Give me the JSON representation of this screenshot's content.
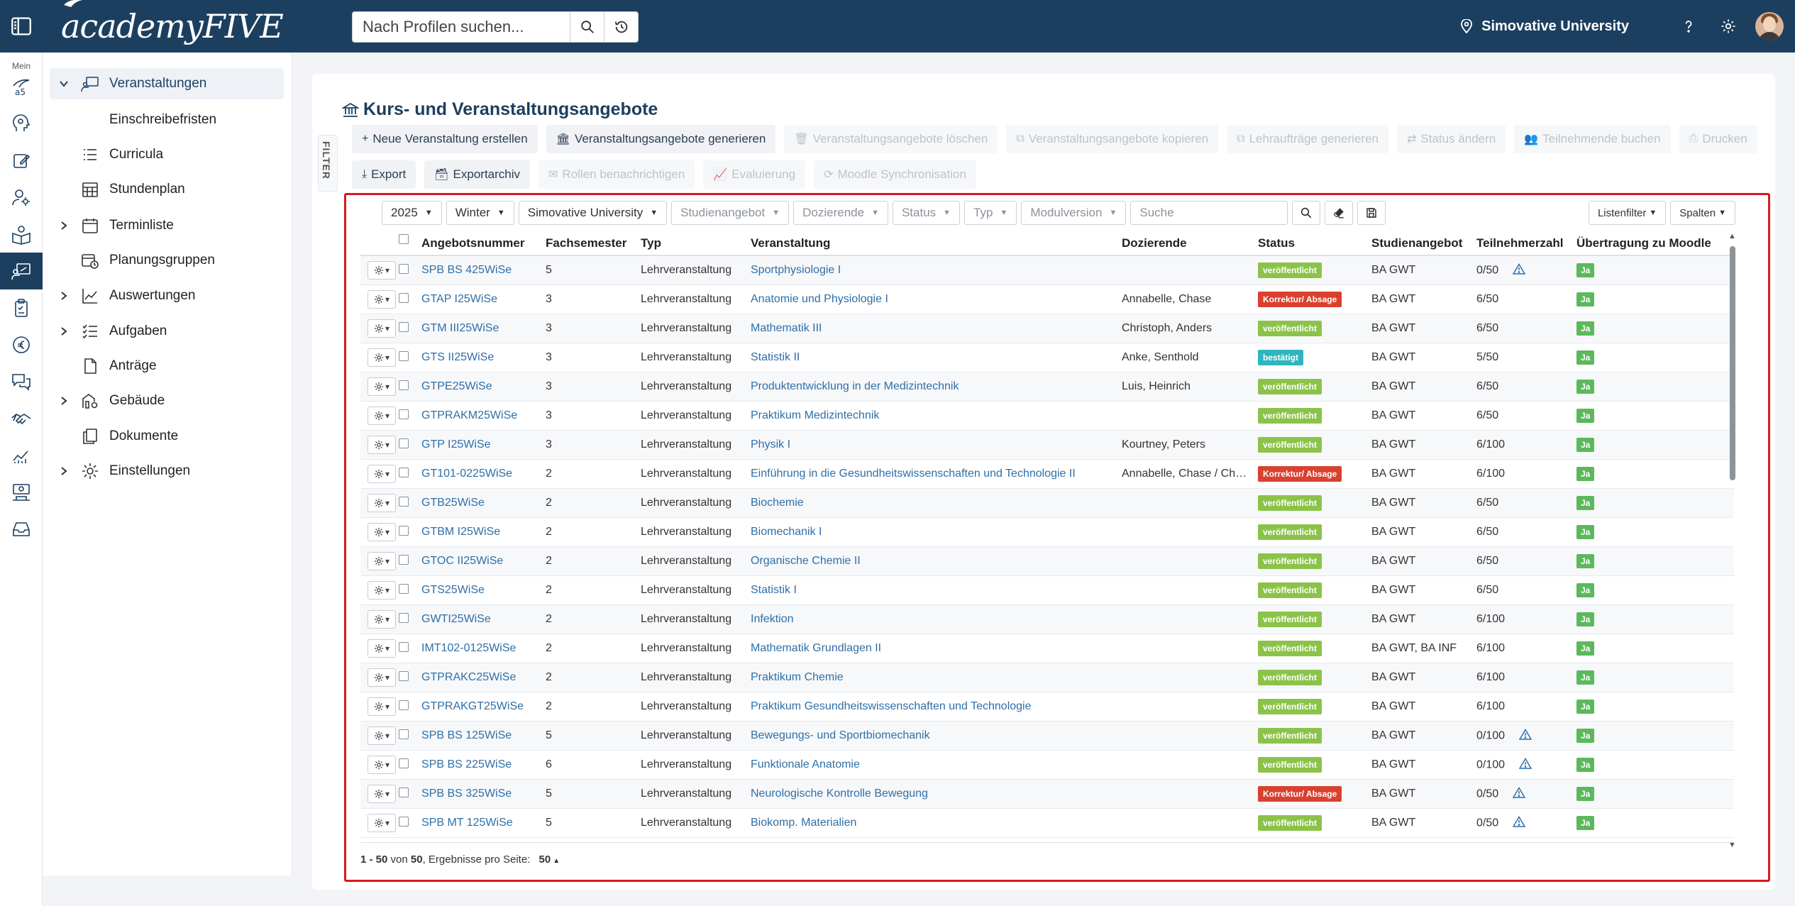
{
  "topbar": {
    "brand": "academyFIVE",
    "search_placeholder": "Nach Profilen suchen...",
    "university": "Simovative University"
  },
  "rail": {
    "mein_label": "Mein"
  },
  "sidebar": {
    "items": [
      {
        "label": "Veranstaltungen",
        "expanded": true,
        "active": true
      },
      {
        "label": "Einschreibefristen"
      },
      {
        "label": "Curricula"
      },
      {
        "label": "Stundenplan"
      },
      {
        "label": "Terminliste",
        "expandable": true
      },
      {
        "label": "Planungsgruppen"
      },
      {
        "label": "Auswertungen",
        "expandable": true
      },
      {
        "label": "Aufgaben",
        "expandable": true
      },
      {
        "label": "Anträge"
      },
      {
        "label": "Gebäude",
        "expandable": true
      },
      {
        "label": "Dokumente"
      },
      {
        "label": "Einstellungen",
        "expandable": true
      }
    ]
  },
  "page": {
    "title": "Kurs- und Veranstaltungsangebote",
    "filter_tab": "FILTER"
  },
  "toolbar": {
    "row1": [
      {
        "label": "Neue Veranstaltung erstellen",
        "icon": "+",
        "enabled": true
      },
      {
        "label": "Veranstaltungsangebote generieren",
        "icon": "🏛",
        "enabled": true
      },
      {
        "label": "Veranstaltungsangebote löschen",
        "icon": "🗑",
        "enabled": false
      },
      {
        "label": "Veranstaltungsangebote kopieren",
        "icon": "⧉",
        "enabled": false
      },
      {
        "label": "Lehraufträge generieren",
        "icon": "⧉",
        "enabled": false
      },
      {
        "label": "Status ändern",
        "icon": "⇄",
        "enabled": false
      },
      {
        "label": "Teilnehmende buchen",
        "icon": "👥",
        "enabled": false
      },
      {
        "label": "Drucken",
        "icon": "⎙",
        "enabled": false
      }
    ],
    "row2": [
      {
        "label": "Export",
        "icon": "⤓",
        "enabled": true
      },
      {
        "label": "Exportarchiv",
        "icon": "🗃",
        "enabled": true
      },
      {
        "label": "Rollen benachrichtigen",
        "icon": "✉",
        "enabled": false
      },
      {
        "label": "Evaluierung",
        "icon": "📈",
        "enabled": false
      },
      {
        "label": "Moodle Synchronisation",
        "icon": "⟳",
        "enabled": false
      }
    ]
  },
  "filters": {
    "year": "2025",
    "semester": "Winter",
    "university": "Simovative University",
    "studienangebot": "Studienangebot",
    "dozierende": "Dozierende",
    "status": "Status",
    "typ": "Typ",
    "modulversion": "Modulversion",
    "search_placeholder": "Suche",
    "listenfilter": "Listenfilter",
    "spalten": "Spalten"
  },
  "table": {
    "columns": [
      "Angebotsnummer",
      "Fachsemester",
      "Typ",
      "Veranstaltung",
      "Dozierende",
      "Status",
      "Studienangebot",
      "Teilnehmerzahl",
      "Übertragung zu Moodle"
    ],
    "rows": [
      {
        "num": "SPB BS 425WiSe",
        "sem": "5",
        "typ": "Lehrveranstaltung",
        "ver": "Sportphysiologie I",
        "doz": "",
        "status": "veröffentlicht",
        "sk": "green",
        "stu": "BA GWT",
        "tn": "0/50",
        "warn": true,
        "moodle": "Ja"
      },
      {
        "num": "GTAP I25WiSe",
        "sem": "3",
        "typ": "Lehrveranstaltung",
        "ver": "Anatomie und Physiologie I",
        "doz": "Annabelle, Chase",
        "status": "Korrektur/ Absage",
        "sk": "red",
        "stu": "BA GWT",
        "tn": "6/50",
        "warn": false,
        "moodle": "Ja"
      },
      {
        "num": "GTM III25WiSe",
        "sem": "3",
        "typ": "Lehrveranstaltung",
        "ver": "Mathematik III",
        "doz": "Christoph, Anders",
        "status": "veröffentlicht",
        "sk": "green",
        "stu": "BA GWT",
        "tn": "6/50",
        "warn": false,
        "moodle": "Ja"
      },
      {
        "num": "GTS II25WiSe",
        "sem": "3",
        "typ": "Lehrveranstaltung",
        "ver": "Statistik II",
        "doz": "Anke, Senthold",
        "status": "bestätigt",
        "sk": "teal",
        "stu": "BA GWT",
        "tn": "5/50",
        "warn": false,
        "moodle": "Ja"
      },
      {
        "num": "GTPE25WiSe",
        "sem": "3",
        "typ": "Lehrveranstaltung",
        "ver": "Produktentwicklung in der Medizintechnik",
        "doz": "Luis, Heinrich",
        "status": "veröffentlicht",
        "sk": "green",
        "stu": "BA GWT",
        "tn": "6/50",
        "warn": false,
        "moodle": "Ja"
      },
      {
        "num": "GTPRAKM25WiSe",
        "sem": "3",
        "typ": "Lehrveranstaltung",
        "ver": "Praktikum Medizintechnik",
        "doz": "",
        "status": "veröffentlicht",
        "sk": "green",
        "stu": "BA GWT",
        "tn": "6/50",
        "warn": false,
        "moodle": "Ja"
      },
      {
        "num": "GTP I25WiSe",
        "sem": "3",
        "typ": "Lehrveranstaltung",
        "ver": "Physik I",
        "doz": "Kourtney, Peters",
        "status": "veröffentlicht",
        "sk": "green",
        "stu": "BA GWT",
        "tn": "6/100",
        "warn": false,
        "moodle": "Ja"
      },
      {
        "num": "GT101-0225WiSe",
        "sem": "2",
        "typ": "Lehrveranstaltung",
        "ver": "Einführung in die Gesundheitswissenschaften und Technologie II",
        "doz": "Annabelle, Chase / Ch…",
        "status": "Korrektur/ Absage",
        "sk": "red",
        "stu": "BA GWT",
        "tn": "6/100",
        "warn": false,
        "moodle": "Ja"
      },
      {
        "num": "GTB25WiSe",
        "sem": "2",
        "typ": "Lehrveranstaltung",
        "ver": "Biochemie",
        "doz": "",
        "status": "veröffentlicht",
        "sk": "green",
        "stu": "BA GWT",
        "tn": "6/50",
        "warn": false,
        "moodle": "Ja"
      },
      {
        "num": "GTBM I25WiSe",
        "sem": "2",
        "typ": "Lehrveranstaltung",
        "ver": "Biomechanik I",
        "doz": "",
        "status": "veröffentlicht",
        "sk": "green",
        "stu": "BA GWT",
        "tn": "6/50",
        "warn": false,
        "moodle": "Ja"
      },
      {
        "num": "GTOC II25WiSe",
        "sem": "2",
        "typ": "Lehrveranstaltung",
        "ver": "Organische Chemie II",
        "doz": "",
        "status": "veröffentlicht",
        "sk": "green",
        "stu": "BA GWT",
        "tn": "6/50",
        "warn": false,
        "moodle": "Ja"
      },
      {
        "num": "GTS25WiSe",
        "sem": "2",
        "typ": "Lehrveranstaltung",
        "ver": "Statistik I",
        "doz": "",
        "status": "veröffentlicht",
        "sk": "green",
        "stu": "BA GWT",
        "tn": "6/50",
        "warn": false,
        "moodle": "Ja"
      },
      {
        "num": "GWTI25WiSe",
        "sem": "2",
        "typ": "Lehrveranstaltung",
        "ver": "Infektion",
        "doz": "",
        "status": "veröffentlicht",
        "sk": "green",
        "stu": "BA GWT",
        "tn": "6/100",
        "warn": false,
        "moodle": "Ja"
      },
      {
        "num": "IMT102-0125WiSe",
        "sem": "2",
        "typ": "Lehrveranstaltung",
        "ver": "Mathematik Grundlagen II",
        "doz": "",
        "status": "veröffentlicht",
        "sk": "green",
        "stu": "BA GWT, BA INF",
        "tn": "6/100",
        "warn": false,
        "moodle": "Ja"
      },
      {
        "num": "GTPRAKC25WiSe",
        "sem": "2",
        "typ": "Lehrveranstaltung",
        "ver": "Praktikum Chemie",
        "doz": "",
        "status": "veröffentlicht",
        "sk": "green",
        "stu": "BA GWT",
        "tn": "6/100",
        "warn": false,
        "moodle": "Ja"
      },
      {
        "num": "GTPRAKGT25WiSe",
        "sem": "2",
        "typ": "Lehrveranstaltung",
        "ver": "Praktikum Gesundheitswissenschaften und Technologie",
        "doz": "",
        "status": "veröffentlicht",
        "sk": "green",
        "stu": "BA GWT",
        "tn": "6/100",
        "warn": false,
        "moodle": "Ja"
      },
      {
        "num": "SPB BS 125WiSe",
        "sem": "5",
        "typ": "Lehrveranstaltung",
        "ver": "Bewegungs- und Sportbiomechanik",
        "doz": "",
        "status": "veröffentlicht",
        "sk": "green",
        "stu": "BA GWT",
        "tn": "0/100",
        "warn": true,
        "moodle": "Ja"
      },
      {
        "num": "SPB BS 225WiSe",
        "sem": "6",
        "typ": "Lehrveranstaltung",
        "ver": "Funktionale Anatomie",
        "doz": "",
        "status": "veröffentlicht",
        "sk": "green",
        "stu": "BA GWT",
        "tn": "0/100",
        "warn": true,
        "moodle": "Ja"
      },
      {
        "num": "SPB BS 325WiSe",
        "sem": "5",
        "typ": "Lehrveranstaltung",
        "ver": "Neurologische Kontrolle Bewegung",
        "doz": "",
        "status": "Korrektur/ Absage",
        "sk": "red",
        "stu": "BA GWT",
        "tn": "0/50",
        "warn": true,
        "moodle": "Ja"
      },
      {
        "num": "SPB MT 125WiSe",
        "sem": "5",
        "typ": "Lehrveranstaltung",
        "ver": "Biokomp. Materialien",
        "doz": "",
        "status": "veröffentlicht",
        "sk": "green",
        "stu": "BA GWT",
        "tn": "0/50",
        "warn": true,
        "moodle": "Ja"
      }
    ]
  },
  "pagination": {
    "range": "1 - 50",
    "of_label": "von",
    "total": "50",
    "per_page_label": ", Ergebnisse pro Seite:",
    "per_page": "50"
  }
}
